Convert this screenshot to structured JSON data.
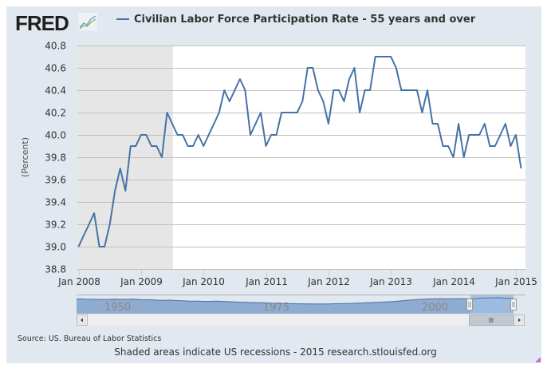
{
  "header": {
    "logo_text": "FRED",
    "logo_icon": "trend-lines-icon",
    "legend_label": "Civilian Labor Force Participation Rate - 55 years and over"
  },
  "colors": {
    "series": "#4572a7",
    "recession_shade": "#e6e6e6",
    "panel_bg": "#e1e8f0",
    "navigator_fill": "#8fabcf",
    "navigator_selected": "#9fbde0"
  },
  "chart_data": {
    "type": "line",
    "title": "Civilian Labor Force Participation Rate - 55 years and over",
    "xlabel": "",
    "ylabel": "(Percent)",
    "ylim": [
      38.8,
      40.8
    ],
    "yticks": [
      "38.8",
      "39.0",
      "39.2",
      "39.4",
      "39.6",
      "39.8",
      "40.0",
      "40.2",
      "40.4",
      "40.6",
      "40.8"
    ],
    "xticks": [
      "Jan 2008",
      "Jan 2009",
      "Jan 2010",
      "Jan 2011",
      "Jan 2012",
      "Jan 2013",
      "Jan 2014",
      "Jan 2015"
    ],
    "x_start": "2008-01",
    "x_end": "2015-02",
    "grid": true,
    "recession": {
      "start": "2008-01",
      "end": "2009-06"
    },
    "series": [
      {
        "name": "Civilian Labor Force Participation Rate - 55 years and over",
        "start": "2008-01",
        "frequency": "monthly",
        "values": [
          39.0,
          39.1,
          39.2,
          39.3,
          39.0,
          39.0,
          39.2,
          39.5,
          39.7,
          39.5,
          39.9,
          39.9,
          40.0,
          40.0,
          39.9,
          39.9,
          39.8,
          40.2,
          40.1,
          40.0,
          40.0,
          39.9,
          39.9,
          40.0,
          39.9,
          40.0,
          40.1,
          40.2,
          40.4,
          40.3,
          40.4,
          40.5,
          40.4,
          40.0,
          40.1,
          40.2,
          39.9,
          40.0,
          40.0,
          40.2,
          40.2,
          40.2,
          40.2,
          40.3,
          40.6,
          40.6,
          40.4,
          40.3,
          40.1,
          40.4,
          40.4,
          40.3,
          40.5,
          40.6,
          40.2,
          40.4,
          40.4,
          40.7,
          40.7,
          40.7,
          40.7,
          40.6,
          40.4,
          40.4,
          40.4,
          40.4,
          40.2,
          40.4,
          40.1,
          40.1,
          39.9,
          39.9,
          39.8,
          40.1,
          39.8,
          40.0,
          40.0,
          40.0,
          40.1,
          39.9,
          39.9,
          40.0,
          40.1,
          39.9,
          40.0,
          39.7
        ]
      }
    ],
    "navigator": {
      "labels": [
        "1950",
        "1975",
        "2000"
      ],
      "selected_range": [
        "2008-01",
        "2015-02"
      ]
    }
  },
  "footer": {
    "source": "Source: US. Bureau of Labor Statistics",
    "note": "Shaded areas indicate US recessions - 2015 research.stlouisfed.org"
  }
}
